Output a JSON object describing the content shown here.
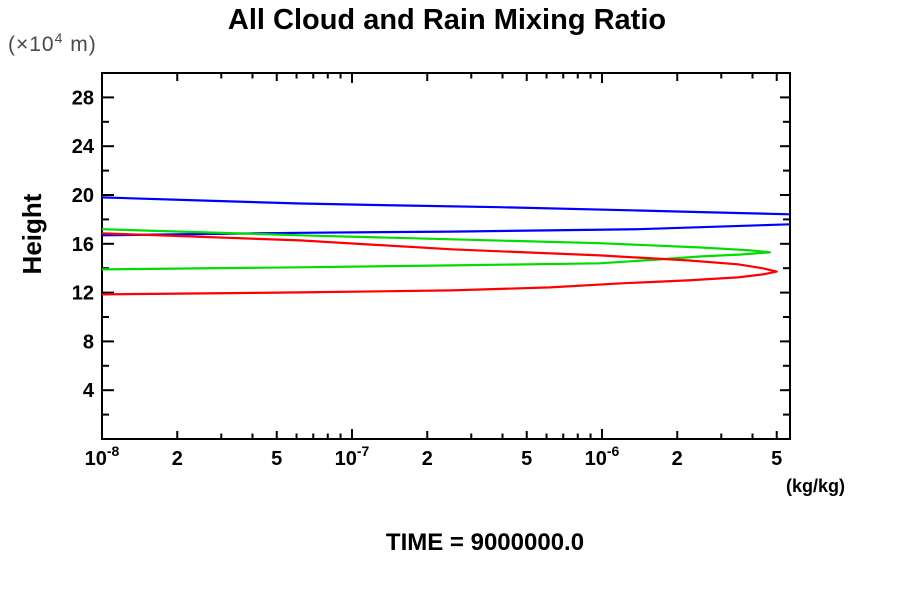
{
  "title": "All Cloud and Rain Mixing Ratio",
  "height_axis": {
    "label": "Height",
    "unit_prefix": "(×10",
    "unit_exp": "4",
    "unit_suffix": " m)"
  },
  "x_axis": {
    "unit_label": "(kg/kg)"
  },
  "footer": {
    "time_label": "TIME = 9000000.0"
  },
  "colors": {
    "blue": "#0000FF",
    "green": "#00DD00",
    "red": "#FF0000",
    "axis": "#000000"
  },
  "chart_data": {
    "type": "line",
    "title": "All Cloud and Rain Mixing Ratio",
    "xlabel": "(kg/kg)",
    "ylabel": "Height (×10^4 m)",
    "x_scale": "log",
    "xlim": [
      1e-08,
      5.65e-06
    ],
    "ylim": [
      0,
      30
    ],
    "grid": false,
    "legend": "none",
    "annotation": "TIME = 9000000.0",
    "x_ticks": [
      {
        "value": 1e-08,
        "kind": "decade",
        "base": "10",
        "exp": "-8"
      },
      {
        "value": 2e-08,
        "kind": "labeled",
        "label": "2"
      },
      {
        "value": 3e-08,
        "kind": "minor"
      },
      {
        "value": 4e-08,
        "kind": "minor"
      },
      {
        "value": 5e-08,
        "kind": "labeled",
        "label": "5"
      },
      {
        "value": 6e-08,
        "kind": "minor"
      },
      {
        "value": 7e-08,
        "kind": "minor"
      },
      {
        "value": 8e-08,
        "kind": "minor"
      },
      {
        "value": 9e-08,
        "kind": "minor"
      },
      {
        "value": 1e-07,
        "kind": "decade",
        "base": "10",
        "exp": "-7"
      },
      {
        "value": 2e-07,
        "kind": "labeled",
        "label": "2"
      },
      {
        "value": 3e-07,
        "kind": "minor"
      },
      {
        "value": 4e-07,
        "kind": "minor"
      },
      {
        "value": 5e-07,
        "kind": "labeled",
        "label": "5"
      },
      {
        "value": 6e-07,
        "kind": "minor"
      },
      {
        "value": 7e-07,
        "kind": "minor"
      },
      {
        "value": 8e-07,
        "kind": "minor"
      },
      {
        "value": 9e-07,
        "kind": "minor"
      },
      {
        "value": 1e-06,
        "kind": "decade",
        "base": "10",
        "exp": "-6"
      },
      {
        "value": 2e-06,
        "kind": "labeled",
        "label": "2"
      },
      {
        "value": 3e-06,
        "kind": "minor"
      },
      {
        "value": 4e-06,
        "kind": "minor"
      },
      {
        "value": 5e-06,
        "kind": "labeled",
        "label": "5"
      }
    ],
    "y_major_ticks": [
      {
        "value": 4,
        "label": "4"
      },
      {
        "value": 8,
        "label": "8"
      },
      {
        "value": 12,
        "label": "12"
      },
      {
        "value": 16,
        "label": "16"
      },
      {
        "value": 20,
        "label": "20"
      },
      {
        "value": 24,
        "label": "24"
      },
      {
        "value": 28,
        "label": "28"
      }
    ],
    "y_minor_ticks": [
      2,
      6,
      10,
      14,
      18,
      22,
      26
    ],
    "series": [
      {
        "name": "blue-profile",
        "color_key": "blue",
        "segments": [
          [
            [
              1e-08,
              19.8
            ],
            [
              2.5e-08,
              19.55
            ],
            [
              6.2e-08,
              19.3
            ],
            [
              1.5e-07,
              19.15
            ],
            [
              3.9e-07,
              19.0
            ],
            [
              1.4e-06,
              18.73
            ],
            [
              2.5e-06,
              18.6
            ],
            [
              5.65e-06,
              18.42
            ]
          ],
          [
            [
              5.65e-06,
              17.6
            ],
            [
              1.4e-06,
              17.2
            ],
            [
              2.5e-07,
              17.0
            ],
            [
              6.2e-08,
              16.9
            ],
            [
              1e-08,
              16.7
            ]
          ]
        ]
      },
      {
        "name": "green-profile",
        "color_key": "green",
        "segments": [
          [
            [
              1e-08,
              17.2
            ],
            [
              6.2e-08,
              16.7
            ],
            [
              2.5e-07,
              16.37
            ],
            [
              9.8e-07,
              16.05
            ],
            [
              2.5e-06,
              15.7
            ],
            [
              3.9e-06,
              15.47
            ],
            [
              4.7e-06,
              15.3
            ],
            [
              3.6e-06,
              15.12
            ],
            [
              2.5e-06,
              14.97
            ],
            [
              1.7e-06,
              14.72
            ],
            [
              9.8e-07,
              14.4
            ],
            [
              2.5e-07,
              14.23
            ],
            [
              6.2e-08,
              14.07
            ],
            [
              1e-08,
              13.9
            ]
          ]
        ]
      },
      {
        "name": "red-profile",
        "color_key": "red",
        "segments": [
          [
            [
              1e-08,
              16.86
            ],
            [
              6.2e-08,
              16.28
            ],
            [
              2.5e-07,
              15.55
            ],
            [
              9.8e-07,
              15.05
            ],
            [
              2.2e-06,
              14.64
            ],
            [
              3.5e-06,
              14.32
            ],
            [
              4.4e-06,
              13.99
            ],
            [
              5e-06,
              13.72
            ],
            [
              4.4e-06,
              13.49
            ],
            [
              3.5e-06,
              13.25
            ],
            [
              2.2e-06,
              13.0
            ],
            [
              1.2e-06,
              12.76
            ],
            [
              6.2e-07,
              12.43
            ],
            [
              2.5e-07,
              12.18
            ],
            [
              6.2e-08,
              12.02
            ],
            [
              1e-08,
              11.85
            ]
          ]
        ]
      }
    ]
  }
}
